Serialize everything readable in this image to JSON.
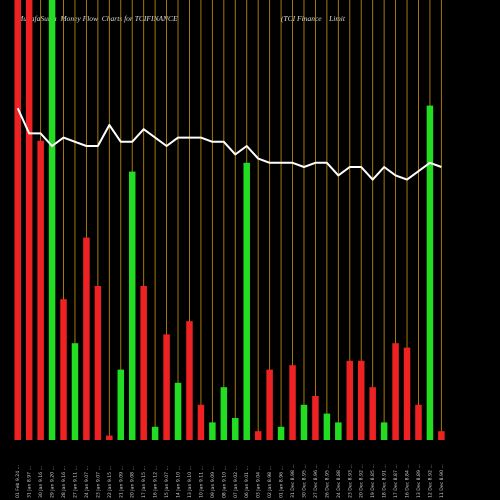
{
  "header": {
    "left_title": "MunafaSutra  Money Flow  Charts for TCIFINANCE",
    "right_title": "(TCI Finance    Limit"
  },
  "colors": {
    "background": "#000000",
    "up_bar": "#22dd22",
    "down_bar": "#ee2222",
    "grid_line": "#b8860b",
    "price_line": "#ffffff"
  },
  "chart_data": {
    "type": "bar",
    "title": "MunafaSutra  Money Flow  Charts for TCIFINANCE",
    "bar_scale": [
      0,
      100
    ],
    "line_scale": [
      0,
      100
    ],
    "categories": [
      "01 Feb 9.24 ...",
      "31 Jan 8.97 ...",
      "30 Jan 9.16 ...",
      "29 Jan 9.20 ...",
      "28 Jan 9.16 ...",
      "27 Jan 9.11 ...",
      "24 Jan 9.07 ...",
      "23 Jan 9.07 ...",
      "22 Jan 9.15 ...",
      "21 Jan 9.09 ...",
      "20 Jan 9.08 ...",
      "17 Jan 9.15 ...",
      "16 Jan 9.12 ...",
      "15 Jan 9.07 ...",
      "14 Jan 9.10 ...",
      "13 Jan 9.10 ...",
      "10 Jan 9.11 ...",
      "09 Jan 9.09 ...",
      "08 Jan 9.10 ...",
      "07 Jan 9.02 ...",
      "06 Jan 9.01 ...",
      "03 Jan 9.04 ...",
      "02 Jan 8.98 ...",
      "01 Jan 8.96 ...",
      "31 Dec 8.98 ...",
      "30 Dec 8.95 ...",
      "27 Dec 8.96 ...",
      "26 Dec 8.95 ...",
      "24 Dec 8.88 ...",
      "23 Dec 8.93 ...",
      "20 Dec 8.92 ...",
      "19 Dec 8.85 ...",
      "18 Dec 8.91 ...",
      "17 Dec 8.87 ...",
      "16 Dec 8.84 ...",
      "13 Dec 8.89 ...",
      "12 Dec 8.92 ...",
      "11 Dec 8.90 ..."
    ],
    "directions": [
      "down",
      "down",
      "down",
      "up",
      "down",
      "up",
      "down",
      "down",
      "down",
      "up",
      "up",
      "down",
      "up",
      "down",
      "up",
      "down",
      "down",
      "up",
      "up",
      "up",
      "up",
      "down",
      "down",
      "up",
      "down",
      "up",
      "down",
      "up",
      "up",
      "down",
      "down",
      "down",
      "up",
      "down",
      "down",
      "down",
      "up",
      "down"
    ],
    "values": [
      100,
      100,
      68,
      100,
      32,
      22,
      46,
      35,
      1,
      16,
      61,
      35,
      3,
      24,
      13,
      27,
      8,
      4,
      12,
      5,
      63,
      2,
      16,
      3,
      17,
      8,
      10,
      6,
      4,
      18,
      18,
      12,
      4,
      22,
      21,
      8,
      76,
      2
    ],
    "up_values_extra": [],
    "line_values": [
      79,
      73,
      73,
      70,
      72,
      71,
      70,
      70,
      75,
      71,
      71,
      74,
      72,
      70,
      72,
      72,
      72,
      71,
      71,
      68,
      70,
      67,
      66,
      66,
      66,
      65,
      66,
      66,
      63,
      65,
      65,
      62,
      65,
      63,
      62,
      64,
      66,
      65
    ]
  }
}
